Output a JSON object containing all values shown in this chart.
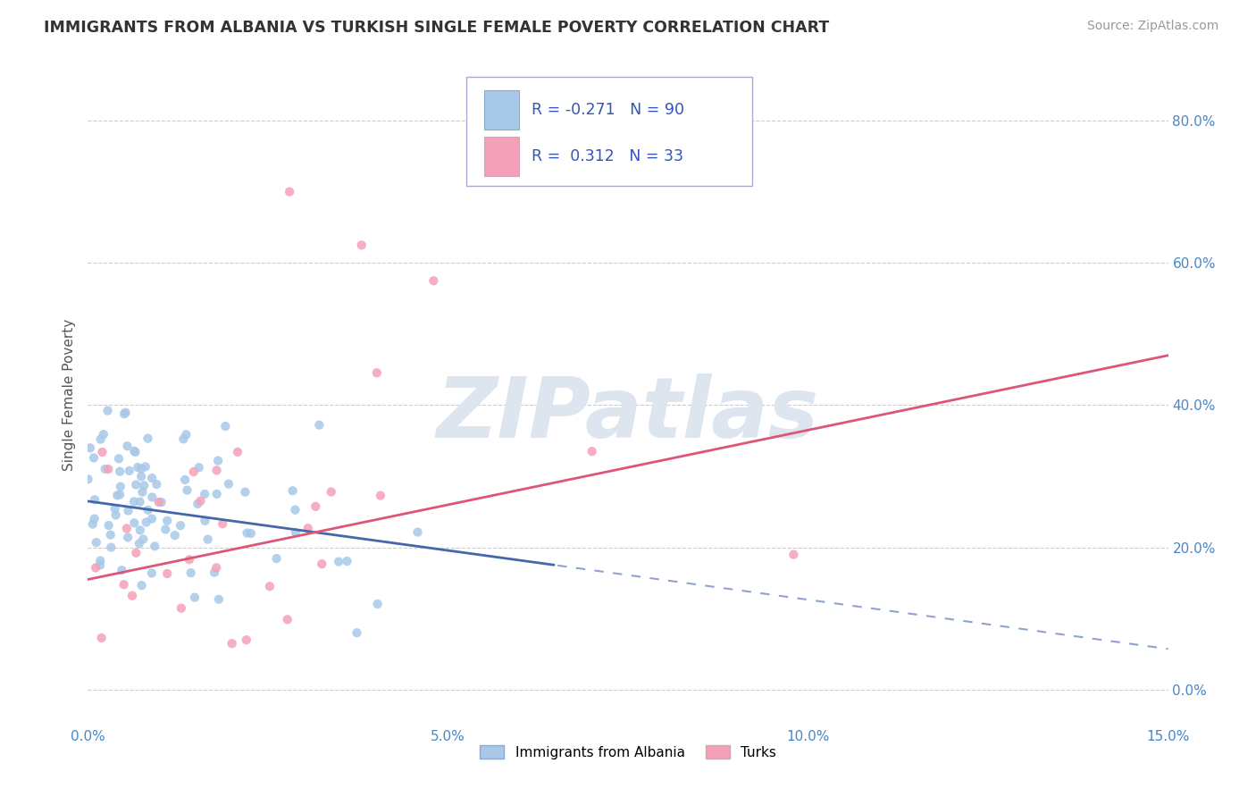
{
  "title": "IMMIGRANTS FROM ALBANIA VS TURKISH SINGLE FEMALE POVERTY CORRELATION CHART",
  "source": "Source: ZipAtlas.com",
  "xlabel_legend1": "Immigrants from Albania",
  "xlabel_legend2": "Turks",
  "ylabel": "Single Female Poverty",
  "xlim": [
    0.0,
    0.15
  ],
  "ylim": [
    -0.05,
    0.88
  ],
  "xticks": [
    0.0,
    0.05,
    0.1,
    0.15
  ],
  "xticklabels": [
    "0.0%",
    "5.0%",
    "10.0%",
    "15.0%"
  ],
  "ytick_right": [
    0.0,
    0.2,
    0.4,
    0.6,
    0.8
  ],
  "yticklabels_right": [
    "0.0%",
    "20.0%",
    "40.0%",
    "60.0%",
    "80.0%"
  ],
  "R1": -0.271,
  "N1": 90,
  "R2": 0.312,
  "N2": 33,
  "color1": "#a8c8e8",
  "color2": "#f4a0b8",
  "trend1_color": "#4466aa",
  "trend2_color": "#dd5577",
  "watermark": "ZIPatlas",
  "watermark_color": "#dde5ef",
  "legend_text_color": "#3355bb",
  "grid_color": "#cccccc",
  "background_color": "#ffffff",
  "tick_color": "#4488cc",
  "title_color": "#333333",
  "source_color": "#999999",
  "ylabel_color": "#555555"
}
